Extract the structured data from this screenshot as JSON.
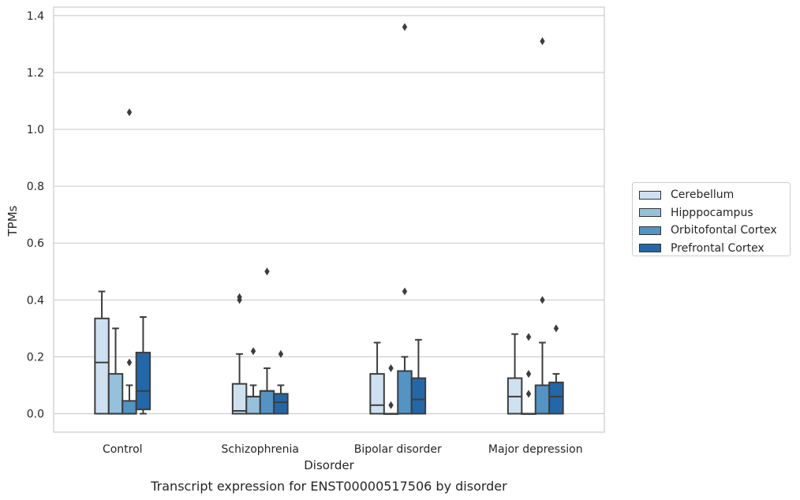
{
  "chart_data": {
    "type": "box",
    "title": "Transcript expression for ENST00000517506 by disorder",
    "xlabel": "Disorder",
    "ylabel": "TPMs",
    "ylim": [
      -0.065,
      1.43
    ],
    "yticks": [
      "0.0",
      "0.2",
      "0.4",
      "0.6",
      "0.8",
      "1.0",
      "1.2",
      "1.4"
    ],
    "ytick_values": [
      0,
      0.2,
      0.4,
      0.6,
      0.8,
      1.0,
      1.2,
      1.4
    ],
    "grid": true,
    "legend_placement": "right",
    "categories": [
      "Control",
      "Schizophrenia",
      "Bipolar disorder",
      "Major depression"
    ],
    "series": [
      {
        "name": "Cerebellum",
        "color": "#cfe0f0",
        "boxes": [
          {
            "q1": 0,
            "median": 0.18,
            "q3": 0.335,
            "whisker_low": 0,
            "whisker_high": 0.43,
            "outliers": []
          },
          {
            "q1": 0,
            "median": 0.01,
            "q3": 0.105,
            "whisker_low": 0,
            "whisker_high": 0.21,
            "outliers": [
              0.4,
              0.41
            ]
          },
          {
            "q1": 0,
            "median": 0.03,
            "q3": 0.14,
            "whisker_low": 0,
            "whisker_high": 0.25,
            "outliers": []
          },
          {
            "q1": 0,
            "median": 0.06,
            "q3": 0.125,
            "whisker_low": 0,
            "whisker_high": 0.28,
            "outliers": []
          }
        ]
      },
      {
        "name": "Hipppocampus",
        "color": "#95c1dc",
        "boxes": [
          {
            "q1": 0,
            "median": 0,
            "q3": 0.14,
            "whisker_low": 0,
            "whisker_high": 0.3,
            "outliers": []
          },
          {
            "q1": 0,
            "median": 0.06,
            "q3": 0.06,
            "whisker_low": 0,
            "whisker_high": 0.1,
            "outliers": [
              0.22
            ]
          },
          {
            "q1": 0,
            "median": 0,
            "q3": 0,
            "whisker_low": 0,
            "whisker_high": 0,
            "outliers": [
              0.03,
              0.16
            ]
          },
          {
            "q1": 0,
            "median": 0,
            "q3": 0,
            "whisker_low": 0,
            "whisker_high": 0,
            "outliers": [
              0.07,
              0.14,
              0.27
            ]
          }
        ]
      },
      {
        "name": "Orbitofontal Cortex",
        "color": "#5394c4",
        "boxes": [
          {
            "q1": 0,
            "median": 0,
            "q3": 0.045,
            "whisker_low": 0,
            "whisker_high": 0.1,
            "outliers": [
              0.18,
              1.06
            ]
          },
          {
            "q1": 0,
            "median": 0.08,
            "q3": 0.08,
            "whisker_low": 0,
            "whisker_high": 0.16,
            "outliers": [
              0.5
            ]
          },
          {
            "q1": 0,
            "median": 0.15,
            "q3": 0.15,
            "whisker_low": 0,
            "whisker_high": 0.2,
            "outliers": [
              0.43,
              1.36
            ]
          },
          {
            "q1": 0,
            "median": 0.1,
            "q3": 0.1,
            "whisker_low": 0,
            "whisker_high": 0.25,
            "outliers": [
              0.4,
              1.31
            ]
          }
        ]
      },
      {
        "name": "Prefrontal Cortex",
        "color": "#2467a9",
        "boxes": [
          {
            "q1": 0.015,
            "median": 0.08,
            "q3": 0.215,
            "whisker_low": 0,
            "whisker_high": 0.34,
            "outliers": []
          },
          {
            "q1": 0,
            "median": 0.04,
            "q3": 0.07,
            "whisker_low": 0,
            "whisker_high": 0.1,
            "outliers": [
              0.21
            ]
          },
          {
            "q1": 0,
            "median": 0.05,
            "q3": 0.125,
            "whisker_low": 0,
            "whisker_high": 0.26,
            "outliers": []
          },
          {
            "q1": 0,
            "median": 0.06,
            "q3": 0.11,
            "whisker_low": 0,
            "whisker_high": 0.14,
            "outliers": [
              0.3
            ]
          }
        ]
      }
    ]
  }
}
